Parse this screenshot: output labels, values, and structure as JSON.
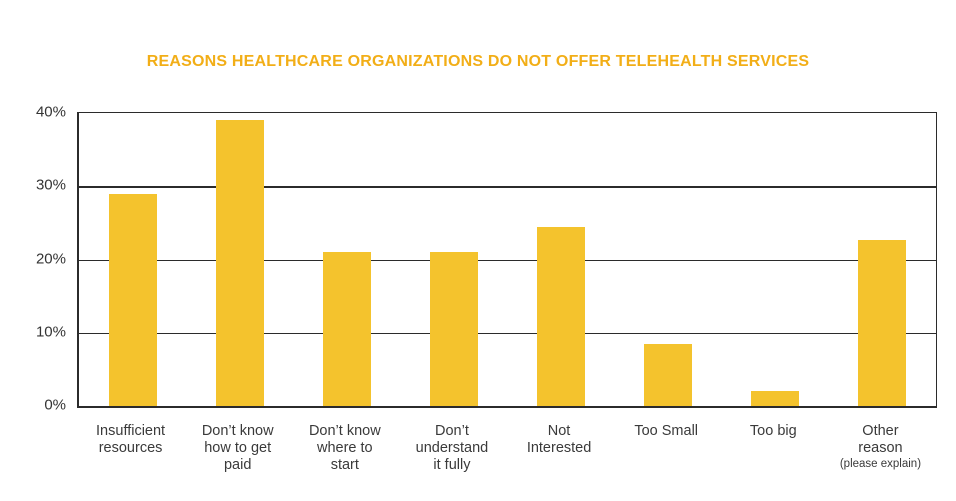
{
  "chart_data": {
    "type": "bar",
    "title": "REASONS HEALTHCARE ORGANIZATIONS DO NOT OFFER TELEHEALTH SERVICES",
    "xlabel": "",
    "ylabel": "",
    "ylim": [
      0,
      40
    ],
    "yticks": [
      "40%",
      "30%",
      "20%",
      "10%",
      "0%"
    ],
    "grid": true,
    "legend": "none",
    "bar_color": "#F4C32D",
    "title_color": "#F2AE17",
    "axis_color": "#2B2B2B",
    "label_color": "#3A3A3A",
    "categories": [
      {
        "label": "Insufficient resources",
        "lines": [
          "Insufficient",
          "resources"
        ],
        "value": 29
      },
      {
        "label": "Don’t know how to get paid",
        "lines": [
          "Don’t know",
          "how to get",
          "paid"
        ],
        "value": 39
      },
      {
        "label": "Don’t know where to start",
        "lines": [
          "Don’t know",
          "where to",
          "start"
        ],
        "value": 21
      },
      {
        "label": "Don’t understand it fully",
        "lines": [
          "Don’t",
          "understand",
          "it fully"
        ],
        "value": 21
      },
      {
        "label": "Not Interested",
        "lines": [
          "Not",
          "Interested"
        ],
        "value": 24.5
      },
      {
        "label": "Too Small",
        "lines": [
          "Too Small"
        ],
        "value": 8.5
      },
      {
        "label": "Too big",
        "lines": [
          "Too big"
        ],
        "value": 2
      },
      {
        "label": "Other reason (please explain)",
        "lines": [
          "Other",
          "reason"
        ],
        "sub": "(please explain)",
        "value": 22.7
      }
    ]
  }
}
